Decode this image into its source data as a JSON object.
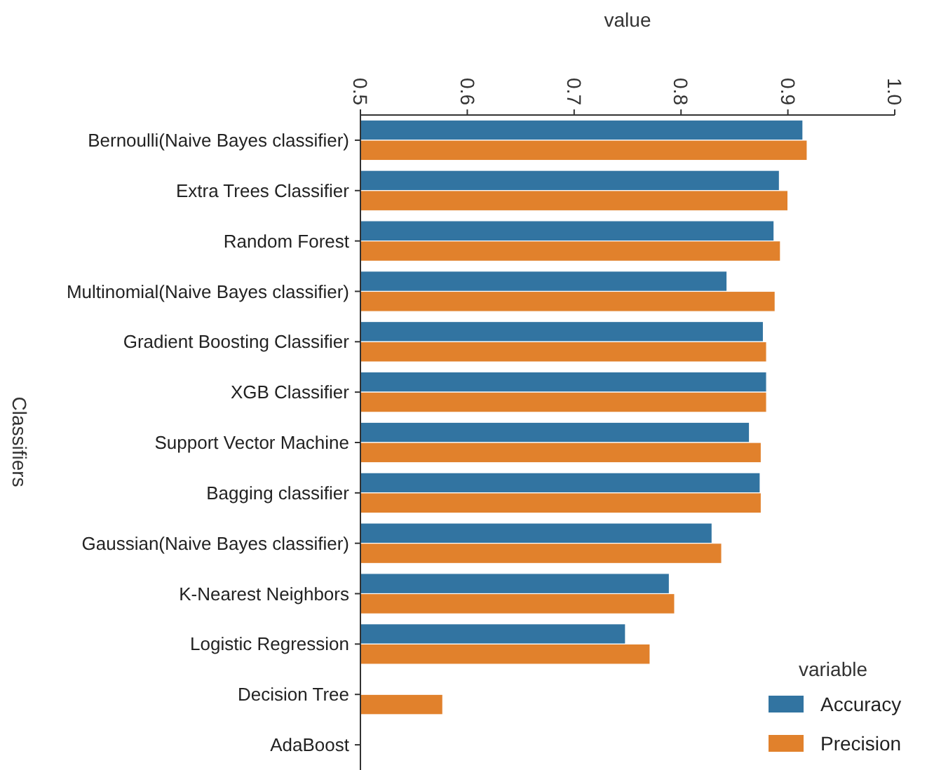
{
  "chart_data": {
    "type": "bar",
    "orientation": "horizontal",
    "xlabel": "value",
    "ylabel": "Classifiers",
    "legend_title": "variable",
    "legend": "bottom right",
    "categories": [
      "Bernoulli(Naive Bayes classifier)",
      "Extra Trees Classifier",
      "Random Forest",
      "Multinomial(Naive Bayes classifier)",
      "Gradient Boosting Classifier",
      "XGB Classifier",
      "Support Vector Machine",
      "Bagging classifier",
      "Gaussian(Naive Bayes classifier)",
      "K-Nearest Neighbors",
      "Logistic Regression",
      "Decision Tree",
      "AdaBoost"
    ],
    "series": [
      {
        "name": "Accuracy",
        "color": "#3274a1",
        "values": [
          0.914,
          0.892,
          0.887,
          0.843,
          0.877,
          0.88,
          0.864,
          0.874,
          0.829,
          0.789,
          0.748,
          null,
          null
        ]
      },
      {
        "name": "Precision",
        "color": "#e1812c",
        "values": [
          0.918,
          0.9,
          0.893,
          0.888,
          0.88,
          0.88,
          0.875,
          0.875,
          0.838,
          0.794,
          0.771,
          0.577,
          null
        ]
      }
    ],
    "xlim": [
      0.5,
      1.0
    ],
    "xticks": [
      0.5,
      0.6,
      0.7,
      0.8,
      0.9,
      {
        "value": 1,
        "label": "1.0"
      }
    ]
  }
}
